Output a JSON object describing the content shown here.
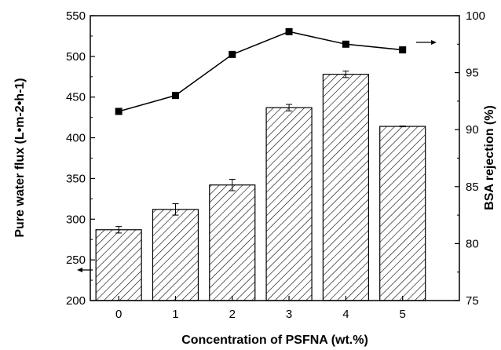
{
  "chart_data": {
    "type": "bar",
    "categories": [
      "0",
      "1",
      "2",
      "3",
      "4",
      "5"
    ],
    "xlabel": "Concentration of PSFNA (wt.%)",
    "ylabel_left": "Pure water flux (L•m-2•h-1)",
    "ylabel_right": "BSA rejection (%)",
    "ylim_left": [
      200,
      550
    ],
    "ylim_right": [
      75,
      100
    ],
    "yticks_left": [
      200,
      250,
      300,
      350,
      400,
      450,
      500,
      550
    ],
    "yticks_right": [
      75,
      80,
      85,
      90,
      95,
      100
    ],
    "series": [
      {
        "axis": "left",
        "kind": "bar",
        "pattern": "diagonal-hatch",
        "values": [
          287,
          312,
          342,
          437,
          478,
          414
        ],
        "errors": [
          4,
          7,
          7,
          4,
          4,
          0.5
        ]
      },
      {
        "axis": "right",
        "kind": "line",
        "marker": "square",
        "values": [
          91.6,
          93.0,
          96.6,
          98.6,
          97.5,
          97.0
        ]
      }
    ],
    "grid": false,
    "legend": "none"
  }
}
